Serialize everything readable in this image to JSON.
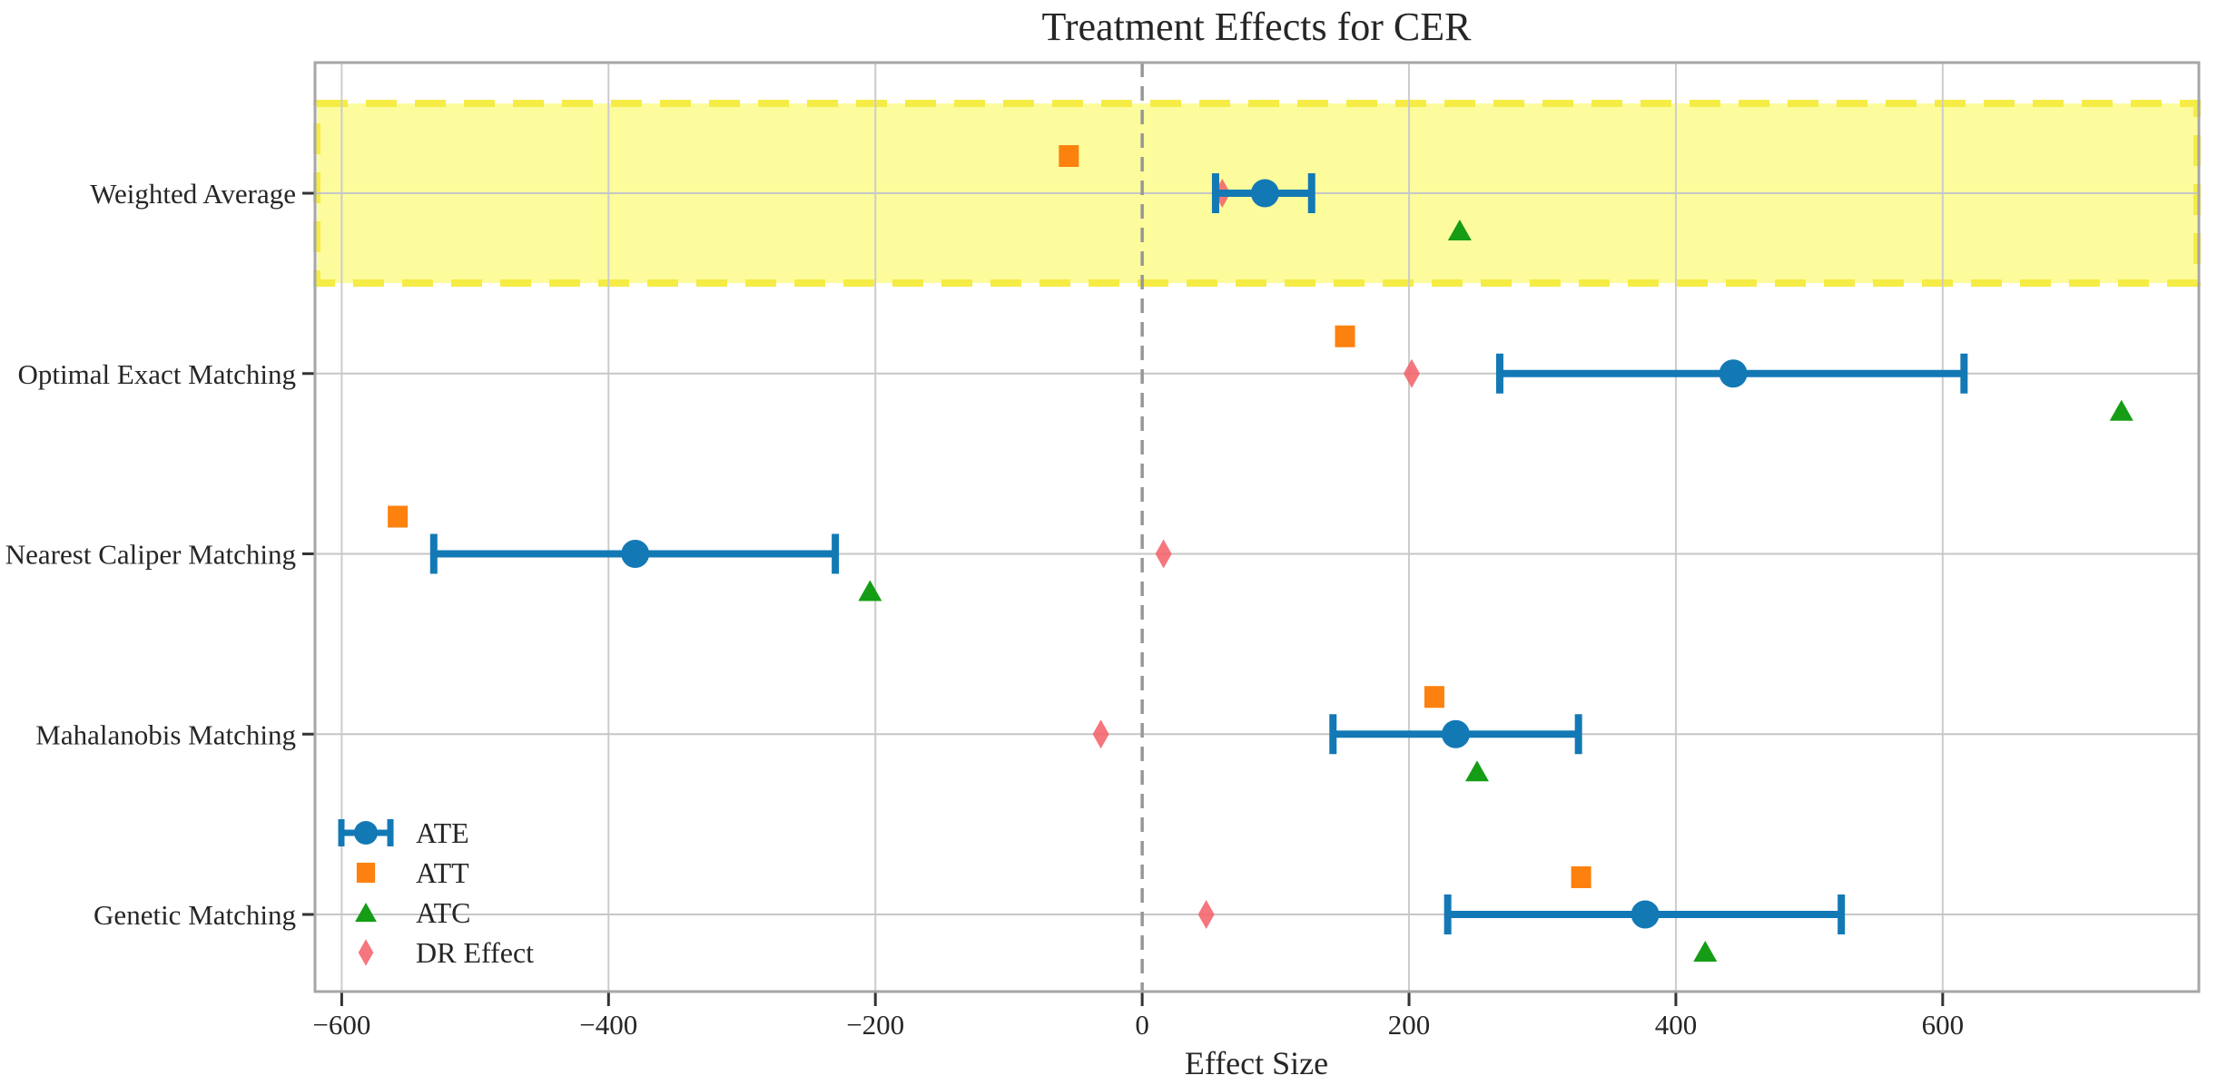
{
  "chart_data": {
    "type": "scatter",
    "title": "Treatment Effects for CER",
    "xlabel": "Effect Size",
    "ylabel": "",
    "x_axis": {
      "min": -620,
      "max": 792,
      "grid": true,
      "ticks": [
        {
          "value": -600,
          "label": "−600"
        },
        {
          "value": -400,
          "label": "−400"
        },
        {
          "value": -200,
          "label": "−200"
        },
        {
          "value": 0,
          "label": "0"
        },
        {
          "value": 200,
          "label": "200"
        },
        {
          "value": 400,
          "label": "400"
        },
        {
          "value": 600,
          "label": "600"
        }
      ]
    },
    "categories": [
      "Weighted Average",
      "Optimal Exact Matching",
      "Nearest Caliper Matching",
      "Mahalanobis Matching",
      "Genetic Matching"
    ],
    "highlight_band": {
      "category": "Weighted Average",
      "fill": "#fcfc9d",
      "border": "#f5ec45"
    },
    "zero_line": {
      "x": 0,
      "style": "dashed",
      "color": "#979797"
    },
    "series": [
      {
        "name": "ATE",
        "marker": "circle-errorbar",
        "color": "#1379b5",
        "points": [
          {
            "category": "Weighted Average",
            "est": 92,
            "lo": 55,
            "hi": 127
          },
          {
            "category": "Optimal Exact Matching",
            "est": 443,
            "lo": 268,
            "hi": 616
          },
          {
            "category": "Nearest Caliper Matching",
            "est": -380,
            "lo": -531,
            "hi": -230
          },
          {
            "category": "Mahalanobis Matching",
            "est": 235,
            "lo": 143,
            "hi": 327
          },
          {
            "category": "Genetic Matching",
            "est": 377,
            "lo": 229,
            "hi": 524
          }
        ]
      },
      {
        "name": "ATT",
        "marker": "square",
        "color": "#fd810e",
        "values": [
          -55,
          152,
          -558,
          219,
          329
        ]
      },
      {
        "name": "ATC",
        "marker": "triangle",
        "color": "#159d15",
        "values": [
          238,
          734,
          -204,
          251,
          422
        ]
      },
      {
        "name": "DR Effect",
        "marker": "diamond",
        "color": "#f4636b",
        "values": [
          60,
          202,
          16,
          -31,
          48
        ]
      }
    ],
    "legend": {
      "position": "lower-left",
      "entries": [
        "ATE",
        "ATT",
        "ATC",
        "DR Effect"
      ]
    },
    "grid_color": "#cccccc",
    "border_color": "#a6a6a6"
  }
}
